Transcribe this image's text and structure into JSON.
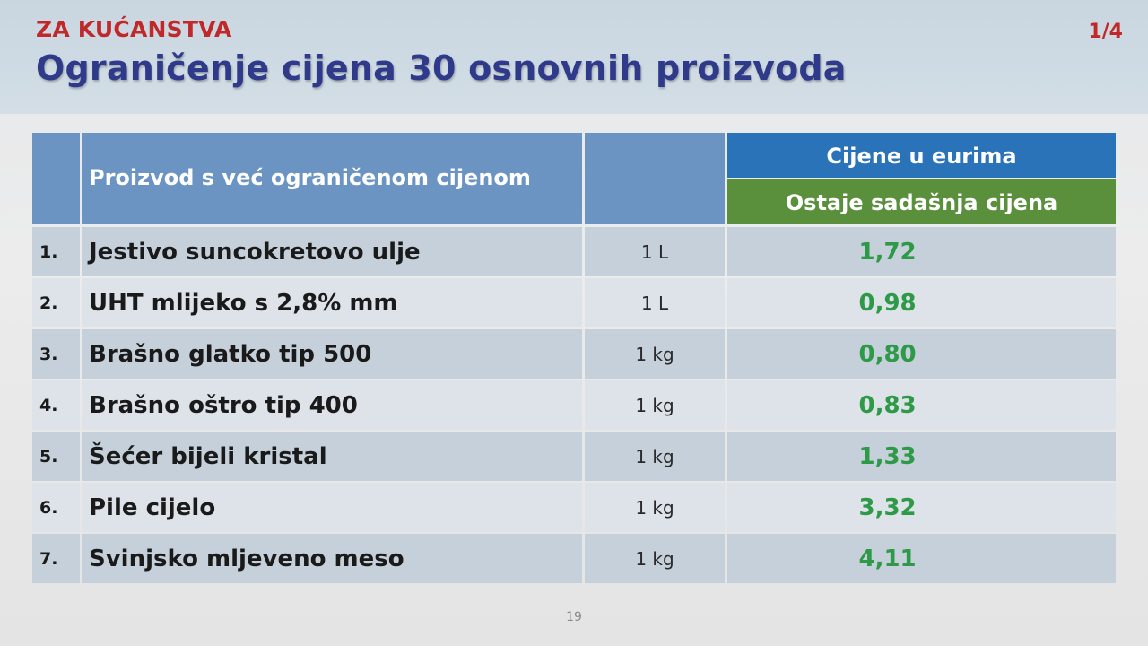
{
  "header": {
    "kicker": "ZA KUĆANSTVA",
    "title": "Ograničenje cijena 30 osnovnih proizvoda",
    "page_indicator": "1/4"
  },
  "table": {
    "header_product": "Proizvod s već ograničenom cijenom",
    "header_price_group": "Cijene u eurima",
    "header_price_sub": "Ostaje sadašnja cijena",
    "rows": [
      {
        "num": "1.",
        "product": "Jestivo suncokretovo ulje",
        "unit": "1 L",
        "price": "1,72"
      },
      {
        "num": "2.",
        "product": "UHT mlijeko s 2,8% mm",
        "unit": "1 L",
        "price": "0,98"
      },
      {
        "num": "3.",
        "product": "Brašno glatko tip 500",
        "unit": "1 kg",
        "price": "0,80"
      },
      {
        "num": "4.",
        "product": "Brašno oštro tip 400",
        "unit": "1 kg",
        "price": "0,83"
      },
      {
        "num": "5.",
        "product": "Šećer bijeli kristal",
        "unit": "1 kg",
        "price": "1,33"
      },
      {
        "num": "6.",
        "product": "Pile cijelo",
        "unit": "1 kg",
        "price": "3,32"
      },
      {
        "num": "7.",
        "product": "Svinjsko mljeveno meso",
        "unit": "1 kg",
        "price": "4,11"
      }
    ]
  },
  "footer": {
    "slide_number": "19"
  },
  "colors": {
    "kicker": "#c0282a",
    "title": "#2f3a8a",
    "header_blue": "#2a73b8",
    "header_green": "#5a8f3c",
    "price_green": "#2e9a47"
  }
}
